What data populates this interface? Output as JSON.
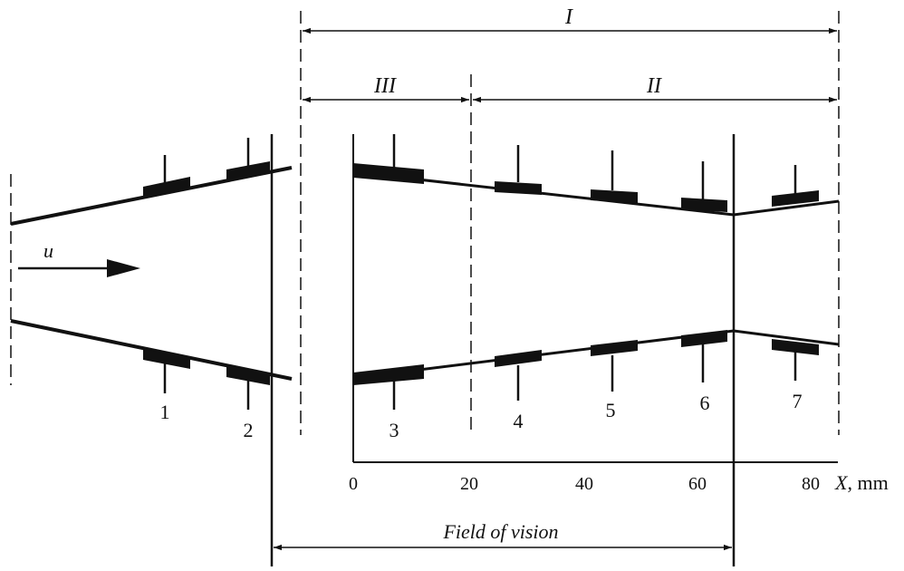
{
  "regions": {
    "I": "I",
    "II": "II",
    "III": "III"
  },
  "flow_label": "u",
  "sensor_labels": [
    "1",
    "2",
    "3",
    "4",
    "5",
    "6",
    "7"
  ],
  "axis": {
    "ticks": [
      "0",
      "20",
      "40",
      "60",
      "80"
    ],
    "label": "X",
    "unit": ", mm"
  },
  "field_of_vision": "Field of vision",
  "colors": {
    "ink": "#111111",
    "background": "#ffffff"
  }
}
